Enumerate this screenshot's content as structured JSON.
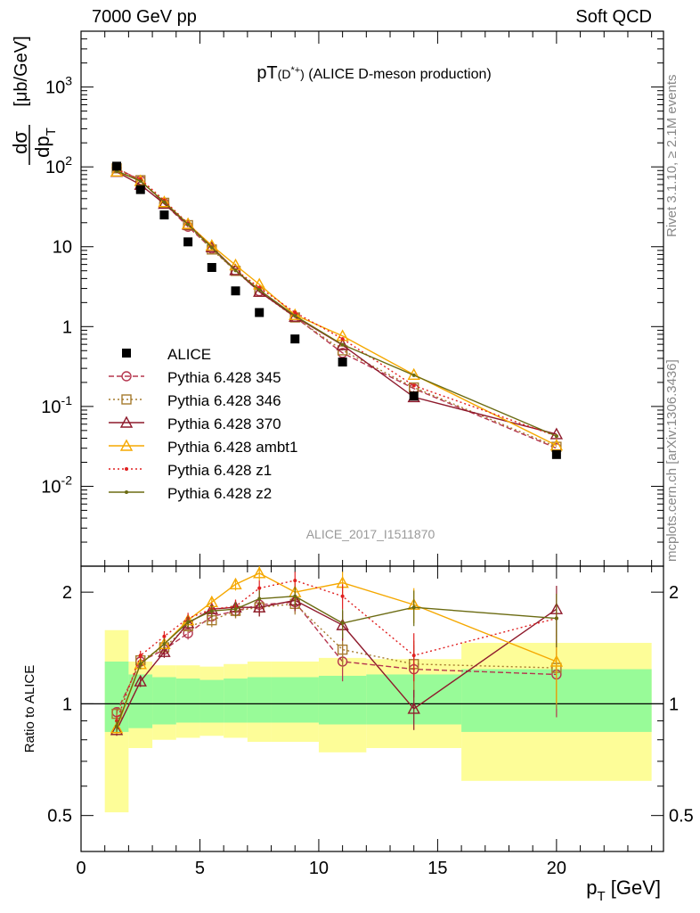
{
  "header": {
    "left": "7000 GeV pp",
    "right": "Soft QCD"
  },
  "side_text": {
    "rivet": "Rivet 3.1.10, ≥ 2.1M events",
    "mcplots": "mcplots.cern.ch [arXiv:1306.3436]"
  },
  "chart_data": {
    "type": "scatter",
    "title_main": "pT",
    "title_sup": "(D",
    "title_sup2": "*+",
    "title_sup3": ")",
    "title_rest": " (ALICE D-meson production)",
    "watermark": "ALICE_2017_I1511870",
    "xlabel": "p",
    "xlabel_sub": "T",
    "xlabel_unit": " [GeV]",
    "ylabel_top": "dσ",
    "ylabel_bottom": "dp",
    "ylabel_bottom_sub": "T",
    "ylabel_unit": "[μb/GeV]",
    "ratio_ylabel": "Ratio to ALICE",
    "xlim": [
      0,
      24.5
    ],
    "ylim": [
      0.001,
      5000
    ],
    "ylog": true,
    "ratio_ylim": [
      0.4,
      2.35
    ],
    "ratio_ylog": true,
    "x_ticks": [
      "0",
      "5",
      "10",
      "15",
      "20"
    ],
    "y_ticks": [
      "10^-2",
      "10^-1",
      "1",
      "10",
      "10^2",
      "10^3"
    ],
    "ratio_ticks": [
      "0.5",
      "1",
      "2"
    ],
    "data": {
      "name": "ALICE",
      "bins": [
        [
          1,
          2
        ],
        [
          2,
          3
        ],
        [
          3,
          4
        ],
        [
          4,
          5
        ],
        [
          5,
          6
        ],
        [
          6,
          7
        ],
        [
          7,
          8
        ],
        [
          8,
          10
        ],
        [
          10,
          12
        ],
        [
          12,
          16
        ],
        [
          16,
          24
        ]
      ],
      "x": [
        1.5,
        2.5,
        3.5,
        4.5,
        5.5,
        6.5,
        7.5,
        9,
        11,
        14,
        20
      ],
      "y": [
        102,
        52,
        25,
        11.5,
        5.5,
        2.8,
        1.5,
        0.7,
        0.36,
        0.135,
        0.025
      ],
      "band_stat_lo": [
        0.84,
        0.86,
        0.88,
        0.89,
        0.89,
        0.89,
        0.89,
        0.89,
        0.88,
        0.88,
        0.84
      ],
      "band_stat_hi": [
        1.3,
        1.2,
        1.18,
        1.17,
        1.16,
        1.17,
        1.18,
        1.18,
        1.19,
        1.2,
        1.24
      ],
      "band_tot_lo": [
        0.51,
        0.76,
        0.8,
        0.81,
        0.82,
        0.81,
        0.79,
        0.79,
        0.74,
        0.76,
        0.62
      ],
      "band_tot_hi": [
        1.58,
        1.3,
        1.27,
        1.27,
        1.26,
        1.28,
        1.3,
        1.3,
        1.33,
        1.32,
        1.46
      ]
    },
    "series": [
      {
        "name": "Pythia 6.428 345",
        "color": "#b5364f",
        "dash": "6,3",
        "marker": "circle",
        "ratio": [
          0.95,
          1.3,
          1.4,
          1.55,
          1.72,
          1.78,
          1.85,
          1.88,
          1.3,
          1.24,
          1.2
        ],
        "err": [
          0.03,
          0.04,
          0.05,
          0.06,
          0.07,
          0.08,
          0.1,
          0.12,
          0.15,
          0.2,
          0.28
        ]
      },
      {
        "name": "Pythia 6.428 346",
        "color": "#a67b2e",
        "dash": "2,3",
        "marker": "square",
        "ratio": [
          0.94,
          1.31,
          1.42,
          1.62,
          1.68,
          1.78,
          1.82,
          1.86,
          1.4,
          1.28,
          1.25
        ],
        "err": [
          0.03,
          0.04,
          0.05,
          0.06,
          0.07,
          0.08,
          0.1,
          0.12,
          0.15,
          0.2,
          0.28
        ]
      },
      {
        "name": "Pythia 6.428 370",
        "color": "#8e1a2c",
        "dash": "",
        "marker": "triangle",
        "ratio": [
          0.85,
          1.15,
          1.38,
          1.65,
          1.8,
          1.82,
          1.82,
          1.9,
          1.63,
          0.97,
          1.8
        ],
        "err": [
          0.03,
          0.04,
          0.05,
          0.06,
          0.07,
          0.08,
          0.1,
          0.12,
          0.15,
          0.12,
          0.28
        ]
      },
      {
        "name": "Pythia 6.428 ambt1",
        "color": "#f5a800",
        "dash": "",
        "marker": "triangle",
        "ratio": [
          0.86,
          1.28,
          1.45,
          1.68,
          1.88,
          2.1,
          2.25,
          2.0,
          2.12,
          1.85,
          1.3
        ],
        "err": [
          0.03,
          0.04,
          0.05,
          0.06,
          0.07,
          0.08,
          0.1,
          0.12,
          0.15,
          0.2,
          0.3
        ]
      },
      {
        "name": "Pythia 6.428 z1",
        "color": "#e02020",
        "dash": "2,3",
        "marker": "dot",
        "ratio": [
          0.9,
          1.35,
          1.52,
          1.7,
          1.8,
          1.83,
          2.05,
          2.15,
          1.95,
          1.35,
          1.7
        ],
        "err": [
          0.03,
          0.04,
          0.05,
          0.06,
          0.07,
          0.08,
          0.1,
          0.12,
          0.15,
          0.2,
          0.28
        ]
      },
      {
        "name": "Pythia 6.428 z2",
        "color": "#6b6b12",
        "dash": "",
        "marker": "dot",
        "ratio": [
          0.87,
          1.28,
          1.45,
          1.66,
          1.78,
          1.8,
          1.92,
          1.95,
          1.65,
          1.82,
          1.7
        ],
        "err": [
          0.03,
          0.04,
          0.05,
          0.06,
          0.07,
          0.08,
          0.1,
          0.12,
          0.15,
          0.2,
          0.28
        ]
      }
    ]
  }
}
